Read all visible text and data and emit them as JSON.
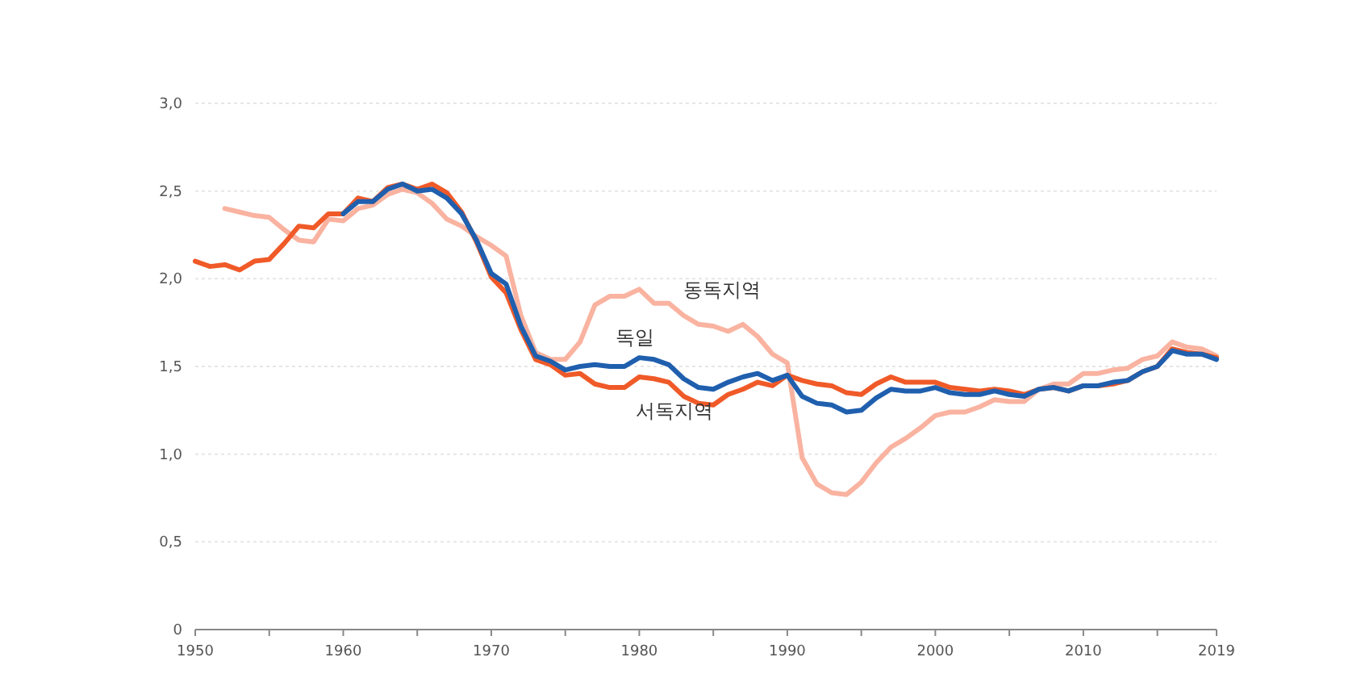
{
  "chart_data": {
    "type": "line",
    "xlim": [
      1950,
      2019
    ],
    "ylim": [
      0,
      3
    ],
    "xticks": [
      1950,
      {
        "value": 1955,
        "label": null
      },
      1960,
      {
        "value": 1965,
        "label": null
      },
      1970,
      {
        "value": 1975,
        "label": null
      },
      1980,
      {
        "value": 1985,
        "label": null
      },
      1990,
      {
        "value": 1995,
        "label": null
      },
      2000,
      {
        "value": 2005,
        "label": null
      },
      2010,
      {
        "value": 2015,
        "label": null
      },
      2019
    ],
    "yticks": [
      0,
      {
        "value": 0.5,
        "label": "0,5"
      },
      {
        "value": 1,
        "label": "1,0"
      },
      {
        "value": 1.5,
        "label": "1,5"
      },
      {
        "value": 2,
        "label": "2,0"
      },
      {
        "value": 2.5,
        "label": "2,5"
      },
      {
        "value": 3,
        "label": "3,0"
      }
    ],
    "grid": "y",
    "marker": "none",
    "line_style": "solid",
    "series": [
      {
        "name": "동독지역",
        "color": "#f9b3a0",
        "x": [
          1952,
          1953,
          1954,
          1955,
          1956,
          1957,
          1958,
          1959,
          1960,
          1961,
          1962,
          1963,
          1964,
          1965,
          1966,
          1967,
          1968,
          1969,
          1970,
          1971,
          1972,
          1973,
          1974,
          1975,
          1976,
          1977,
          1978,
          1979,
          1980,
          1981,
          1982,
          1983,
          1984,
          1985,
          1986,
          1987,
          1988,
          1989,
          1990,
          1991,
          1992,
          1993,
          1994,
          1995,
          1996,
          1997,
          1998,
          1999,
          2000,
          2001,
          2002,
          2003,
          2004,
          2005,
          2006,
          2007,
          2008,
          2009,
          2010,
          2011,
          2012,
          2013,
          2014,
          2015,
          2016,
          2017,
          2018,
          2019
        ],
        "values": [
          2.4,
          2.38,
          2.36,
          2.35,
          2.28,
          2.22,
          2.21,
          2.34,
          2.33,
          2.4,
          2.42,
          2.48,
          2.51,
          2.49,
          2.43,
          2.34,
          2.3,
          2.24,
          2.19,
          2.13,
          1.79,
          1.58,
          1.54,
          1.54,
          1.64,
          1.85,
          1.9,
          1.9,
          1.94,
          1.86,
          1.86,
          1.79,
          1.74,
          1.73,
          1.7,
          1.74,
          1.67,
          1.57,
          1.52,
          0.98,
          0.83,
          0.78,
          0.77,
          0.84,
          0.95,
          1.04,
          1.09,
          1.15,
          1.22,
          1.24,
          1.24,
          1.27,
          1.31,
          1.3,
          1.3,
          1.37,
          1.4,
          1.4,
          1.46,
          1.46,
          1.48,
          1.49,
          1.54,
          1.56,
          1.64,
          1.61,
          1.6,
          1.56
        ]
      },
      {
        "name": "서독지역",
        "color": "#f05a28",
        "x": [
          1950,
          1951,
          1952,
          1953,
          1954,
          1955,
          1956,
          1957,
          1958,
          1959,
          1960,
          1961,
          1962,
          1963,
          1964,
          1965,
          1966,
          1967,
          1968,
          1969,
          1970,
          1971,
          1972,
          1973,
          1974,
          1975,
          1976,
          1977,
          1978,
          1979,
          1980,
          1981,
          1982,
          1983,
          1984,
          1985,
          1986,
          1987,
          1988,
          1989,
          1990,
          1991,
          1992,
          1993,
          1994,
          1995,
          1996,
          1997,
          1998,
          1999,
          2000,
          2001,
          2002,
          2003,
          2004,
          2005,
          2006,
          2007,
          2008,
          2009,
          2010,
          2011,
          2012,
          2013,
          2014,
          2015,
          2016,
          2017,
          2018,
          2019
        ],
        "values": [
          2.1,
          2.07,
          2.08,
          2.05,
          2.1,
          2.11,
          2.2,
          2.3,
          2.29,
          2.37,
          2.37,
          2.46,
          2.44,
          2.52,
          2.54,
          2.51,
          2.54,
          2.49,
          2.38,
          2.21,
          2.01,
          1.92,
          1.71,
          1.54,
          1.51,
          1.45,
          1.46,
          1.4,
          1.38,
          1.38,
          1.44,
          1.43,
          1.41,
          1.33,
          1.29,
          1.28,
          1.34,
          1.37,
          1.41,
          1.39,
          1.45,
          1.42,
          1.4,
          1.39,
          1.35,
          1.34,
          1.4,
          1.44,
          1.41,
          1.41,
          1.41,
          1.38,
          1.37,
          1.36,
          1.37,
          1.36,
          1.34,
          1.37,
          1.38,
          1.36,
          1.39,
          1.39,
          1.4,
          1.42,
          1.47,
          1.5,
          1.6,
          1.58,
          1.57,
          1.55
        ]
      },
      {
        "name": "독일",
        "color": "#1f5fae",
        "x": [
          1960,
          1961,
          1962,
          1963,
          1964,
          1965,
          1966,
          1967,
          1968,
          1969,
          1970,
          1971,
          1972,
          1973,
          1974,
          1975,
          1976,
          1977,
          1978,
          1979,
          1980,
          1981,
          1982,
          1983,
          1984,
          1985,
          1986,
          1987,
          1988,
          1989,
          1990,
          1991,
          1992,
          1993,
          1994,
          1995,
          1996,
          1997,
          1998,
          1999,
          2000,
          2001,
          2002,
          2003,
          2004,
          2005,
          2006,
          2007,
          2008,
          2009,
          2010,
          2011,
          2012,
          2013,
          2014,
          2015,
          2016,
          2017,
          2018,
          2019
        ],
        "values": [
          2.37,
          2.44,
          2.44,
          2.51,
          2.54,
          2.5,
          2.51,
          2.46,
          2.37,
          2.22,
          2.03,
          1.97,
          1.73,
          1.56,
          1.53,
          1.48,
          1.5,
          1.51,
          1.5,
          1.5,
          1.55,
          1.54,
          1.51,
          1.43,
          1.38,
          1.37,
          1.41,
          1.44,
          1.46,
          1.42,
          1.45,
          1.33,
          1.29,
          1.28,
          1.24,
          1.25,
          1.32,
          1.37,
          1.36,
          1.36,
          1.38,
          1.35,
          1.34,
          1.34,
          1.36,
          1.34,
          1.33,
          1.37,
          1.38,
          1.36,
          1.39,
          1.39,
          1.41,
          1.42,
          1.47,
          1.5,
          1.59,
          1.57,
          1.57,
          1.54
        ]
      }
    ]
  }
}
